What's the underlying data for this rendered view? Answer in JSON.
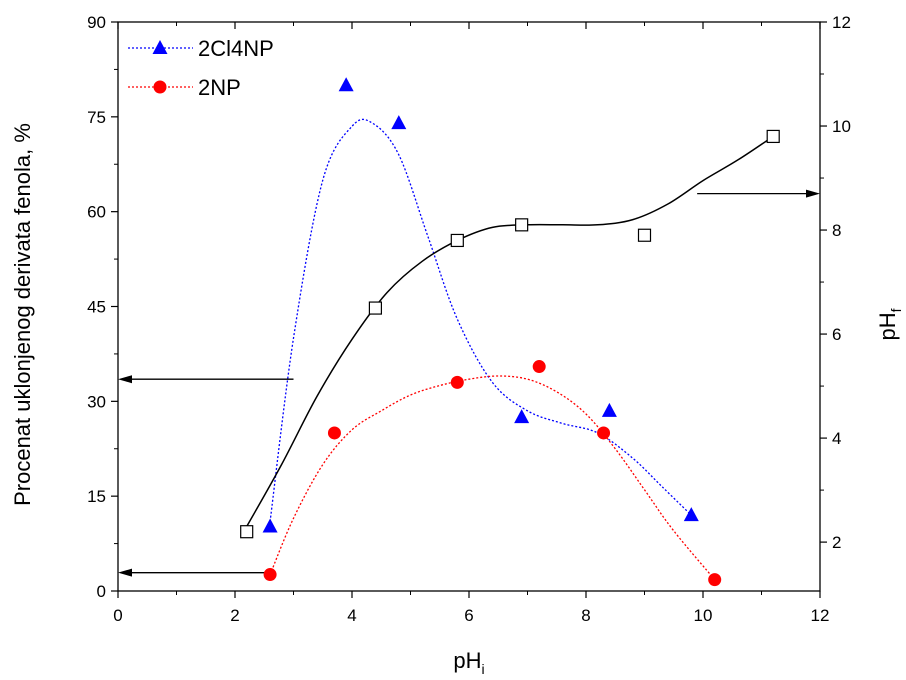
{
  "chart_data": {
    "type": "scatter",
    "title": "",
    "xlabel_main": "pH",
    "xlabel_sub": "i",
    "ylabel": "Procenat uklonjenog derivata fenola, %",
    "y2label_main": "pH",
    "y2label_sub": "f",
    "xlim": [
      0,
      12
    ],
    "ylim": [
      0,
      90
    ],
    "y2lim": [
      1.06,
      12
    ],
    "x_ticks": [
      0,
      2,
      4,
      6,
      8,
      10,
      12
    ],
    "y_ticks": [
      0,
      15,
      30,
      45,
      60,
      75,
      90
    ],
    "y2_ticks": [
      2,
      4,
      6,
      8,
      10,
      12
    ],
    "legend_position": "top-left",
    "series": [
      {
        "name": "2Cl4NP",
        "axis": "left",
        "marker": "triangle",
        "color": "#0000ff",
        "line_style": "dotted",
        "x": [
          2.6,
          3.9,
          4.8,
          6.9,
          8.4,
          9.8
        ],
        "y": [
          10.2,
          80,
          74,
          27.5,
          28.5,
          12
        ],
        "fit_curve": {
          "x": [
            2.6,
            3.0,
            3.5,
            4.0,
            4.35,
            4.8,
            5.3,
            5.8,
            6.4,
            7.0,
            7.6,
            8.2,
            8.8,
            9.3,
            9.8
          ],
          "y": [
            11,
            40,
            65,
            73.5,
            74,
            69,
            56,
            43,
            33,
            28.5,
            26.5,
            25,
            21,
            16.5,
            12
          ]
        }
      },
      {
        "name": "2NP",
        "axis": "left",
        "marker": "circle",
        "color": "#ff0000",
        "line_style": "dotted",
        "x": [
          2.6,
          3.7,
          5.8,
          7.2,
          8.3,
          10.2
        ],
        "y": [
          2.6,
          25,
          33,
          35.5,
          25,
          1.8
        ],
        "fit_curve": {
          "x": [
            2.6,
            3.0,
            3.5,
            4.0,
            4.5,
            5.0,
            5.5,
            6.0,
            6.5,
            7.0,
            7.5,
            8.0,
            8.5,
            9.0,
            9.5,
            10.2
          ],
          "y": [
            2.6,
            11.5,
            20,
            25.5,
            28.5,
            31,
            32.5,
            33.5,
            34,
            33.5,
            31.5,
            28,
            22.5,
            16,
            9.5,
            1.8
          ]
        }
      },
      {
        "axis": "right",
        "marker": "open-square",
        "color": "#000000",
        "line_style": "solid",
        "x": [
          2.2,
          4.4,
          5.8,
          6.9,
          9.0,
          11.2
        ],
        "y": [
          2.2,
          6.5,
          7.8,
          8.1,
          7.9,
          9.8
        ],
        "fit_curve": {
          "x": [
            2.2,
            2.8,
            3.4,
            4.0,
            4.6,
            5.2,
            5.8,
            6.4,
            7.0,
            7.6,
            8.2,
            8.8,
            9.4,
            10.0,
            10.6,
            11.2
          ],
          "y": [
            2.3,
            3.5,
            4.8,
            5.9,
            6.8,
            7.4,
            7.8,
            8.05,
            8.1,
            8.1,
            8.1,
            8.2,
            8.5,
            8.95,
            9.35,
            9.8
          ]
        }
      }
    ],
    "arrows": [
      {
        "from_x": 3.0,
        "y_left": 33.5,
        "to": "left-axis"
      },
      {
        "from_x": 2.55,
        "y_left": 2.9,
        "to": "left-axis"
      },
      {
        "from_x": 9.9,
        "y_right": 8.7,
        "to": "right-axis"
      }
    ]
  }
}
